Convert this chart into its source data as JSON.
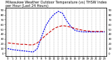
{
  "title": "Milwaukee Weather Outdoor Temperature (vs) THSW Index per Hour (Last 24 Hours)",
  "hours": [
    0,
    1,
    2,
    3,
    4,
    5,
    6,
    7,
    8,
    9,
    10,
    11,
    12,
    13,
    14,
    15,
    16,
    17,
    18,
    19,
    20,
    21,
    22,
    23
  ],
  "temp": [
    22,
    21,
    20,
    19,
    19,
    18,
    18,
    22,
    30,
    38,
    45,
    52,
    56,
    58,
    57,
    55,
    52,
    50,
    48,
    47,
    46,
    46,
    46,
    46
  ],
  "thsw": [
    10,
    8,
    7,
    6,
    5,
    4,
    3,
    10,
    35,
    58,
    72,
    82,
    88,
    84,
    68,
    56,
    48,
    46,
    45,
    45,
    45,
    45,
    45,
    45
  ],
  "temp_color": "#cc0000",
  "thsw_color": "#0000ee",
  "bg_color": "#ffffff",
  "grid_color": "#999999",
  "ylim": [
    -5,
    95
  ],
  "xlim": [
    -0.5,
    23.5
  ],
  "yticks": [
    0,
    10,
    20,
    30,
    40,
    50,
    60,
    70,
    80,
    90
  ],
  "ytick_labels": [
    "0",
    "10",
    "20",
    "30",
    "40",
    "50",
    "60",
    "70",
    "80",
    "90"
  ],
  "xticks": [
    0,
    1,
    2,
    3,
    4,
    5,
    6,
    7,
    8,
    9,
    10,
    11,
    12,
    13,
    14,
    15,
    16,
    17,
    18,
    19,
    20,
    21,
    22,
    23
  ],
  "title_fontsize": 3.5,
  "tick_fontsize": 2.8,
  "temp_lw": 0.8,
  "thsw_lw": 0.9
}
